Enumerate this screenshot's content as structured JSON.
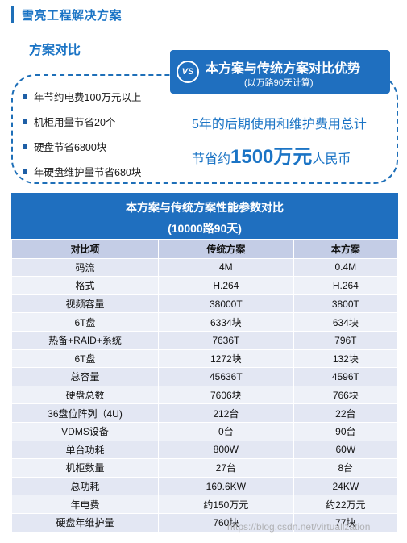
{
  "header": {
    "title": "雪亮工程解决方案"
  },
  "section": {
    "title": "方案对比"
  },
  "bullets": [
    "年节约电费100万元以上",
    "机柜用量节省20个",
    "硬盘节省6800块",
    "年硬盘维护量节省680块"
  ],
  "banner": {
    "vs": "VS",
    "main": "本方案与传统方案对比优势",
    "sub": "(以万路90天计算)"
  },
  "savings": {
    "line1": "5年的后期使用和维护费用总计",
    "prefix": "节省约",
    "amount": "1500万元",
    "suffix": "人民币"
  },
  "table": {
    "title": "本方案与传统方案性能参数对比",
    "subtitle": "(10000路90天)",
    "columns": [
      "对比项",
      "传统方案",
      "本方案"
    ],
    "rows": [
      [
        "码流",
        "4M",
        "0.4M"
      ],
      [
        "格式",
        "H.264",
        "H.264"
      ],
      [
        "视频容量",
        "38000T",
        "3800T"
      ],
      [
        "6T盘",
        "6334块",
        "634块"
      ],
      [
        "热备+RAID+系统",
        "7636T",
        "796T"
      ],
      [
        "6T盘",
        "1272块",
        "132块"
      ],
      [
        "总容量",
        "45636T",
        "4596T"
      ],
      [
        "硬盘总数",
        "7606块",
        "766块"
      ],
      [
        "36盘位阵列（4U)",
        "212台",
        "22台"
      ],
      [
        "VDMS设备",
        "0台",
        "90台"
      ],
      [
        "单台功耗",
        "800W",
        "60W"
      ],
      [
        "机柜数量",
        "27台",
        "8台"
      ],
      [
        "总功耗",
        "169.6KW",
        "24KW"
      ],
      [
        "年电费",
        "约150万元",
        "约22万元"
      ],
      [
        "硬盘年维护量",
        "760块",
        "77块"
      ]
    ]
  },
  "watermark": "https://blog.csdn.net/virtualization"
}
